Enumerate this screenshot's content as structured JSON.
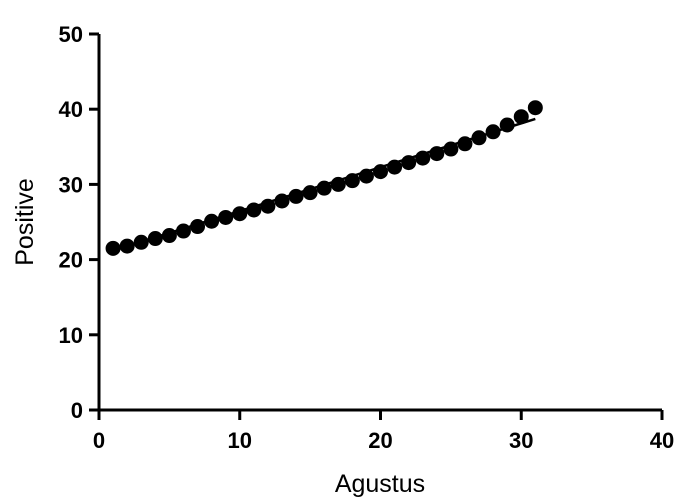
{
  "chart_data": {
    "type": "scatter",
    "title": "",
    "xlabel": "Agustus",
    "ylabel": "Positive",
    "xlim": [
      0,
      40
    ],
    "ylim": [
      0,
      50
    ],
    "xticks": [
      "0",
      "10",
      "20",
      "30",
      "40"
    ],
    "yticks": [
      "0",
      "10",
      "20",
      "30",
      "40",
      "50"
    ],
    "grid": false,
    "series": [
      {
        "marker": "circle",
        "color": "#000000",
        "x": [
          1,
          2,
          3,
          4,
          5,
          6,
          7,
          8,
          9,
          10,
          11,
          12,
          13,
          14,
          15,
          16,
          17,
          18,
          19,
          20,
          21,
          22,
          23,
          24,
          25,
          26,
          27,
          28,
          29,
          30,
          31
        ],
        "y": [
          21.5,
          21.8,
          22.3,
          22.8,
          23.2,
          23.8,
          24.4,
          25.1,
          25.6,
          26.1,
          26.6,
          27.1,
          27.8,
          28.4,
          28.9,
          29.5,
          30.0,
          30.5,
          31.1,
          31.7,
          32.3,
          32.9,
          33.5,
          34.1,
          34.7,
          35.4,
          36.2,
          37.0,
          37.9,
          39.0,
          40.2
        ]
      }
    ],
    "fit_line": {
      "x": [
        1,
        31
      ],
      "y": [
        21.2,
        38.7
      ],
      "color": "#000000"
    }
  }
}
